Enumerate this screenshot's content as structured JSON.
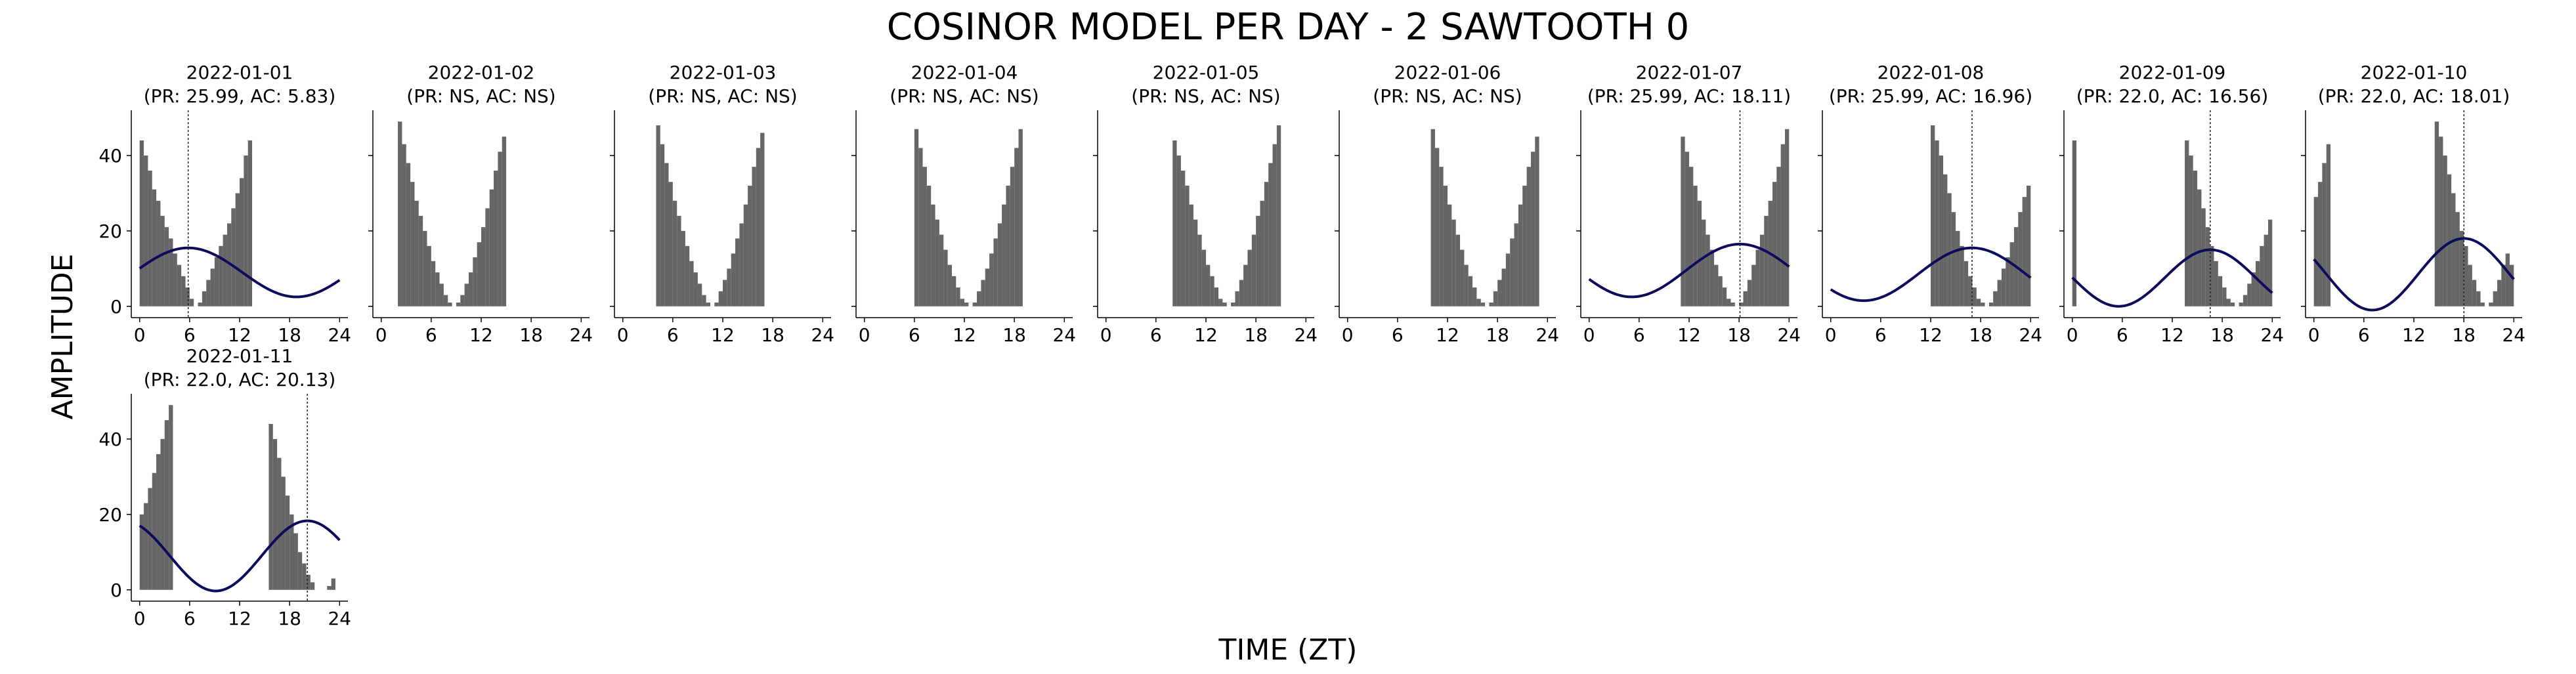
{
  "figure": {
    "title": "COSINOR MODEL PER DAY - 2 SAWTOOTH 0",
    "xlabel": "TIME (ZT)",
    "ylabel": "AMPLITUDE"
  },
  "colors": {
    "bar": "#666666",
    "curve": "#0c0c5c",
    "acrophase_line": "#222222",
    "axis": "#000000"
  },
  "chart_data": {
    "type": "bar",
    "panel_type": "small-multiples histogram with fitted cosine",
    "xlim": [
      -1,
      25
    ],
    "ylim": [
      -3,
      52
    ],
    "xticks": [
      0,
      6,
      12,
      18,
      24
    ],
    "yticks": [
      0,
      20,
      40
    ],
    "grid": false,
    "panels": [
      {
        "date": "2022-01-01",
        "label": "(PR: 25.99, AC: 5.83)",
        "period": 25.99,
        "acrophase": 5.83,
        "bars": [
          [
            0,
            44
          ],
          [
            0.5,
            40
          ],
          [
            1,
            36
          ],
          [
            1.5,
            31
          ],
          [
            2,
            28
          ],
          [
            2.5,
            24
          ],
          [
            3,
            21
          ],
          [
            3.5,
            18
          ],
          [
            4,
            14
          ],
          [
            4.5,
            11
          ],
          [
            5,
            8
          ],
          [
            5.5,
            5
          ],
          [
            6,
            2
          ],
          [
            7,
            1
          ],
          [
            7.5,
            4
          ],
          [
            8,
            7
          ],
          [
            8.5,
            10
          ],
          [
            9,
            13
          ],
          [
            9.5,
            16
          ],
          [
            10,
            19
          ],
          [
            10.5,
            22
          ],
          [
            11,
            26
          ],
          [
            11.5,
            30
          ],
          [
            12,
            34
          ],
          [
            12.5,
            40
          ],
          [
            13,
            44
          ]
        ],
        "curve": {
          "mesor": 9,
          "amplitude": 6.5,
          "start": 0,
          "end": 24
        }
      },
      {
        "date": "2022-01-02",
        "label": "(PR: NS, AC: NS)",
        "period": "NS",
        "acrophase": "NS",
        "bars": [
          [
            2,
            49
          ],
          [
            2.5,
            43
          ],
          [
            3,
            38
          ],
          [
            3.5,
            33
          ],
          [
            4,
            28
          ],
          [
            4.5,
            24
          ],
          [
            5,
            20
          ],
          [
            5.5,
            16
          ],
          [
            6,
            12
          ],
          [
            6.5,
            9
          ],
          [
            7,
            6
          ],
          [
            7.5,
            3
          ],
          [
            8,
            1
          ],
          [
            9,
            1
          ],
          [
            9.5,
            3
          ],
          [
            10,
            6
          ],
          [
            10.5,
            9
          ],
          [
            11,
            13
          ],
          [
            11.5,
            17
          ],
          [
            12,
            21
          ],
          [
            12.5,
            26
          ],
          [
            13,
            31
          ],
          [
            13.5,
            36
          ],
          [
            14,
            41
          ],
          [
            14.5,
            45
          ]
        ],
        "curve": null
      },
      {
        "date": "2022-01-03",
        "label": "(PR: NS, AC: NS)",
        "period": "NS",
        "acrophase": "NS",
        "bars": [
          [
            4,
            48
          ],
          [
            4.5,
            43
          ],
          [
            5,
            38
          ],
          [
            5.5,
            33
          ],
          [
            6,
            28
          ],
          [
            6.5,
            24
          ],
          [
            7,
            20
          ],
          [
            7.5,
            16
          ],
          [
            8,
            12
          ],
          [
            8.5,
            9
          ],
          [
            9,
            6
          ],
          [
            9.5,
            3
          ],
          [
            10,
            1
          ],
          [
            11,
            1
          ],
          [
            11.5,
            4
          ],
          [
            12,
            7
          ],
          [
            12.5,
            10
          ],
          [
            13,
            14
          ],
          [
            13.5,
            18
          ],
          [
            14,
            22
          ],
          [
            14.5,
            27
          ],
          [
            15,
            32
          ],
          [
            15.5,
            37
          ],
          [
            16,
            42
          ],
          [
            16.5,
            46
          ]
        ],
        "curve": null
      },
      {
        "date": "2022-01-04",
        "label": "(PR: NS, AC: NS)",
        "period": "NS",
        "acrophase": "NS",
        "bars": [
          [
            6,
            47
          ],
          [
            6.5,
            42
          ],
          [
            7,
            37
          ],
          [
            7.5,
            32
          ],
          [
            8,
            27
          ],
          [
            8.5,
            23
          ],
          [
            9,
            19
          ],
          [
            9.5,
            15
          ],
          [
            10,
            11
          ],
          [
            10.5,
            8
          ],
          [
            11,
            5
          ],
          [
            11.5,
            2
          ],
          [
            12,
            1
          ],
          [
            13,
            1
          ],
          [
            13.5,
            4
          ],
          [
            14,
            7
          ],
          [
            14.5,
            10
          ],
          [
            15,
            14
          ],
          [
            15.5,
            18
          ],
          [
            16,
            22
          ],
          [
            16.5,
            27
          ],
          [
            17,
            32
          ],
          [
            17.5,
            37
          ],
          [
            18,
            42
          ],
          [
            18.5,
            47
          ]
        ],
        "curve": null
      },
      {
        "date": "2022-01-05",
        "label": "(PR: NS, AC: NS)",
        "period": "NS",
        "acrophase": "NS",
        "bars": [
          [
            8,
            44
          ],
          [
            8.5,
            40
          ],
          [
            9,
            36
          ],
          [
            9.5,
            32
          ],
          [
            10,
            27
          ],
          [
            10.5,
            23
          ],
          [
            11,
            19
          ],
          [
            11.5,
            15
          ],
          [
            12,
            11
          ],
          [
            12.5,
            8
          ],
          [
            13,
            5
          ],
          [
            13.5,
            2
          ],
          [
            14,
            1
          ],
          [
            15,
            1
          ],
          [
            15.5,
            4
          ],
          [
            16,
            7
          ],
          [
            16.5,
            11
          ],
          [
            17,
            15
          ],
          [
            17.5,
            19
          ],
          [
            18,
            24
          ],
          [
            18.5,
            28
          ],
          [
            19,
            33
          ],
          [
            19.5,
            38
          ],
          [
            20,
            43
          ],
          [
            20.5,
            48
          ]
        ],
        "curve": null
      },
      {
        "date": "2022-01-06",
        "label": "(PR: NS, AC: NS)",
        "period": "NS",
        "acrophase": "NS",
        "bars": [
          [
            10,
            47
          ],
          [
            10.5,
            42
          ],
          [
            11,
            37
          ],
          [
            11.5,
            32
          ],
          [
            12,
            27
          ],
          [
            12.5,
            23
          ],
          [
            13,
            19
          ],
          [
            13.5,
            15
          ],
          [
            14,
            11
          ],
          [
            14.5,
            8
          ],
          [
            15,
            5
          ],
          [
            15.5,
            2
          ],
          [
            16,
            1
          ],
          [
            17,
            1
          ],
          [
            17.5,
            4
          ],
          [
            18,
            7
          ],
          [
            18.5,
            10
          ],
          [
            19,
            14
          ],
          [
            19.5,
            18
          ],
          [
            20,
            22
          ],
          [
            20.5,
            27
          ],
          [
            21,
            32
          ],
          [
            21.5,
            37
          ],
          [
            22,
            41
          ],
          [
            22.5,
            45
          ]
        ],
        "curve": null
      },
      {
        "date": "2022-01-07",
        "label": "(PR: 25.99, AC: 18.11)",
        "period": 25.99,
        "acrophase": 18.11,
        "bars": [
          [
            11,
            45
          ],
          [
            11.5,
            41
          ],
          [
            12,
            37
          ],
          [
            12.5,
            32
          ],
          [
            13,
            28
          ],
          [
            13.5,
            23
          ],
          [
            14,
            19
          ],
          [
            14.5,
            15
          ],
          [
            15,
            11
          ],
          [
            15.5,
            8
          ],
          [
            16,
            5
          ],
          [
            16.5,
            2
          ],
          [
            17,
            1
          ],
          [
            18,
            1
          ],
          [
            18.5,
            4
          ],
          [
            19,
            7
          ],
          [
            19.5,
            11
          ],
          [
            20,
            15
          ],
          [
            20.5,
            19
          ],
          [
            21,
            24
          ],
          [
            21.5,
            28
          ],
          [
            22,
            33
          ],
          [
            22.5,
            37
          ],
          [
            23,
            43
          ],
          [
            23.5,
            47
          ]
        ],
        "curve": {
          "mesor": 9.5,
          "amplitude": 7,
          "start": 0,
          "end": 24
        }
      },
      {
        "date": "2022-01-08",
        "label": "(PR: 25.99, AC: 16.96)",
        "period": 25.99,
        "acrophase": 16.96,
        "bars": [
          [
            12,
            48
          ],
          [
            12.5,
            44
          ],
          [
            13,
            40
          ],
          [
            13.5,
            35
          ],
          [
            14,
            30
          ],
          [
            14.5,
            25
          ],
          [
            15,
            20
          ],
          [
            15.5,
            16
          ],
          [
            16,
            12
          ],
          [
            16.5,
            8
          ],
          [
            17,
            5
          ],
          [
            17.5,
            2
          ],
          [
            18,
            1
          ],
          [
            19,
            1
          ],
          [
            19.5,
            4
          ],
          [
            20,
            7
          ],
          [
            20.5,
            10
          ],
          [
            21,
            13
          ],
          [
            21.5,
            17
          ],
          [
            22,
            21
          ],
          [
            22.5,
            25
          ],
          [
            23,
            29
          ],
          [
            23.5,
            32
          ]
        ],
        "curve": {
          "mesor": 8.5,
          "amplitude": 7,
          "start": 0,
          "end": 24
        }
      },
      {
        "date": "2022-01-09",
        "label": "(PR: 22.0, AC: 16.56)",
        "period": 22.0,
        "acrophase": 16.56,
        "bars": [
          [
            0,
            44
          ],
          [
            13.5,
            44
          ],
          [
            14,
            40
          ],
          [
            14.5,
            36
          ],
          [
            15,
            31
          ],
          [
            15.5,
            26
          ],
          [
            16,
            21
          ],
          [
            16.5,
            16
          ],
          [
            17,
            12
          ],
          [
            17.5,
            8
          ],
          [
            18,
            5
          ],
          [
            18.5,
            2
          ],
          [
            19,
            1
          ],
          [
            20,
            1
          ],
          [
            20.5,
            3
          ],
          [
            21,
            6
          ],
          [
            21.5,
            9
          ],
          [
            22,
            12
          ],
          [
            22.5,
            16
          ],
          [
            23,
            19
          ],
          [
            23.5,
            23
          ]
        ],
        "curve": {
          "mesor": 7.5,
          "amplitude": 7.5,
          "start": 0,
          "end": 24
        }
      },
      {
        "date": "2022-01-10",
        "label": "(PR: 22.0, AC: 18.01)",
        "period": 22.0,
        "acrophase": 18.01,
        "bars": [
          [
            0,
            29
          ],
          [
            0.5,
            33
          ],
          [
            1,
            38
          ],
          [
            1.5,
            43
          ],
          [
            14.5,
            49
          ],
          [
            15,
            45
          ],
          [
            15.5,
            40
          ],
          [
            16,
            35
          ],
          [
            16.5,
            30
          ],
          [
            17,
            25
          ],
          [
            17.5,
            20
          ],
          [
            18,
            16
          ],
          [
            18.5,
            11
          ],
          [
            19,
            7
          ],
          [
            19.5,
            4
          ],
          [
            20,
            1
          ],
          [
            21,
            1
          ],
          [
            21.5,
            4
          ],
          [
            22,
            7
          ],
          [
            22.5,
            11
          ],
          [
            23,
            14
          ],
          [
            23.5,
            11
          ]
        ],
        "curve": {
          "mesor": 8.5,
          "amplitude": 9.5,
          "start": 0,
          "end": 24
        }
      },
      {
        "date": "2022-01-11",
        "label": "(PR: 22.0, AC: 20.13)",
        "period": 22.0,
        "acrophase": 20.13,
        "bars": [
          [
            0,
            20
          ],
          [
            0.5,
            23
          ],
          [
            1,
            27
          ],
          [
            1.5,
            31
          ],
          [
            2,
            36
          ],
          [
            2.5,
            40
          ],
          [
            3,
            45
          ],
          [
            3.5,
            49
          ],
          [
            15.5,
            44
          ],
          [
            16,
            40
          ],
          [
            16.5,
            35
          ],
          [
            17,
            30
          ],
          [
            17.5,
            25
          ],
          [
            18,
            20
          ],
          [
            18.5,
            15
          ],
          [
            19,
            10
          ],
          [
            19.5,
            7
          ],
          [
            20,
            4
          ],
          [
            20.5,
            2
          ],
          [
            22.5,
            1
          ],
          [
            23,
            3
          ]
        ],
        "curve": {
          "mesor": 9,
          "amplitude": 9.3,
          "start": 0,
          "end": 24
        }
      }
    ]
  }
}
